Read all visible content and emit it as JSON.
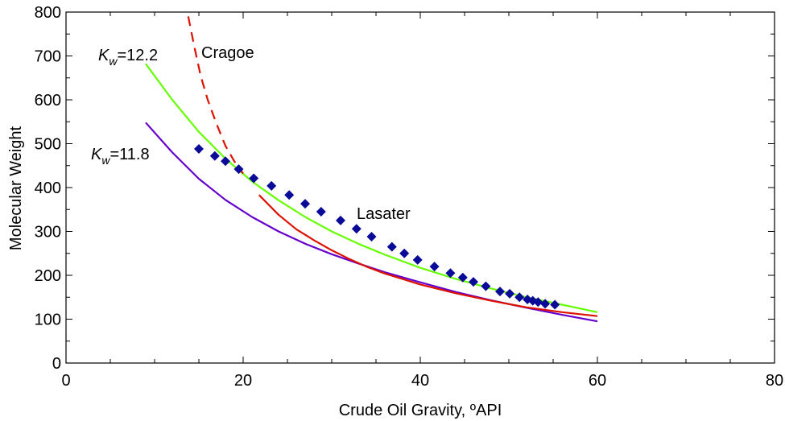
{
  "chart_data": {
    "type": "line",
    "xlabel": "Crude Oil Gravity, ºAPI",
    "ylabel": "Molecular Weight",
    "xlim": [
      0,
      80
    ],
    "ylim": [
      0,
      800
    ],
    "x_ticks": [
      0,
      20,
      40,
      60,
      80
    ],
    "y_ticks": [
      0,
      100,
      200,
      300,
      400,
      500,
      600,
      700,
      800
    ],
    "grid": false,
    "legend": "none",
    "annotations": {
      "kw122_k": "K",
      "kw122_sub": "w",
      "kw122_val": "=12.2",
      "kw118_k": "K",
      "kw118_sub": "w",
      "kw118_val": "=11.8",
      "cragoe": "Cragoe",
      "lasater": "Lasater"
    },
    "series": [
      {
        "color": "#66ff00",
        "style": "solid",
        "x": [
          9,
          12,
          15,
          18,
          21,
          24,
          27,
          30,
          33,
          36,
          40,
          44,
          48,
          52,
          56,
          60
        ],
        "y": [
          682,
          600,
          527,
          466,
          414,
          371,
          333,
          300,
          272,
          247,
          217,
          192,
          170,
          150,
          133,
          116
        ]
      },
      {
        "color": "#6600cc",
        "style": "solid",
        "x": [
          9,
          12,
          15,
          18,
          21,
          24,
          27,
          30,
          33,
          36,
          40,
          44,
          48,
          52,
          56,
          60
        ],
        "y": [
          548,
          480,
          420,
          372,
          333,
          300,
          272,
          248,
          227,
          207,
          184,
          162,
          143,
          126,
          110,
          95
        ]
      },
      {
        "color": "#dd1100",
        "style": "dashed",
        "x": [
          13.8,
          14.5,
          15.2,
          16,
          17,
          18,
          19,
          20
        ],
        "y": [
          790,
          720,
          655,
          600,
          545,
          495,
          460,
          432
        ]
      },
      {
        "color": "#dd1100",
        "style": "solid",
        "x": [
          21.8,
          24,
          26,
          28,
          30,
          32,
          34,
          36,
          40,
          44,
          48,
          52,
          56,
          60
        ],
        "y": [
          383,
          338,
          305,
          280,
          257,
          237,
          219,
          204,
          179,
          159,
          142,
          127,
          116,
          107
        ]
      },
      {
        "color": "#0a0a99",
        "style": "markers",
        "marker": "diamond",
        "x": [
          15,
          16.8,
          18,
          19.5,
          21.2,
          23.2,
          25.2,
          27,
          28.8,
          31,
          32.8,
          34.5,
          36.8,
          38.2,
          39.7,
          41.6,
          43.4,
          44.8,
          46,
          47.4,
          49,
          50.1,
          51.2,
          52.1,
          52.7,
          53.3,
          54.1,
          55.2
        ],
        "y": [
          488,
          472,
          460,
          442,
          421,
          404,
          383,
          363,
          345,
          325,
          306,
          288,
          265,
          250,
          235,
          220,
          205,
          195,
          185,
          175,
          163,
          158,
          150,
          145,
          142,
          139,
          135,
          133
        ]
      }
    ]
  }
}
